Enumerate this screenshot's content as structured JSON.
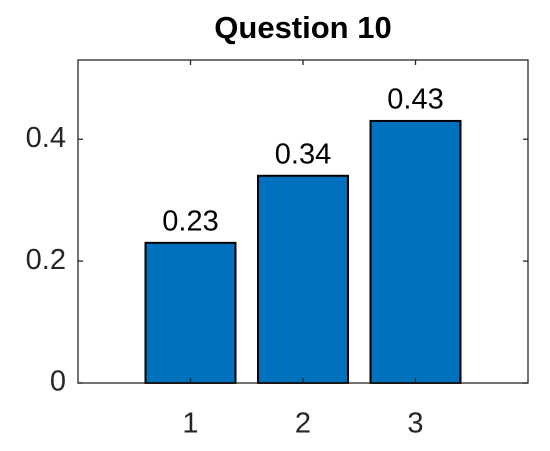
{
  "chart_data": {
    "type": "bar",
    "title": "Question 10",
    "x": [
      1,
      2,
      3
    ],
    "values": [
      0.23,
      0.34,
      0.43
    ],
    "color": "#0072bd",
    "xlim": [
      0,
      4
    ],
    "xticks": [
      1,
      2,
      3
    ],
    "ylim": [
      0,
      0.53
    ],
    "yticks": [
      0,
      0.2,
      0.4
    ]
  }
}
